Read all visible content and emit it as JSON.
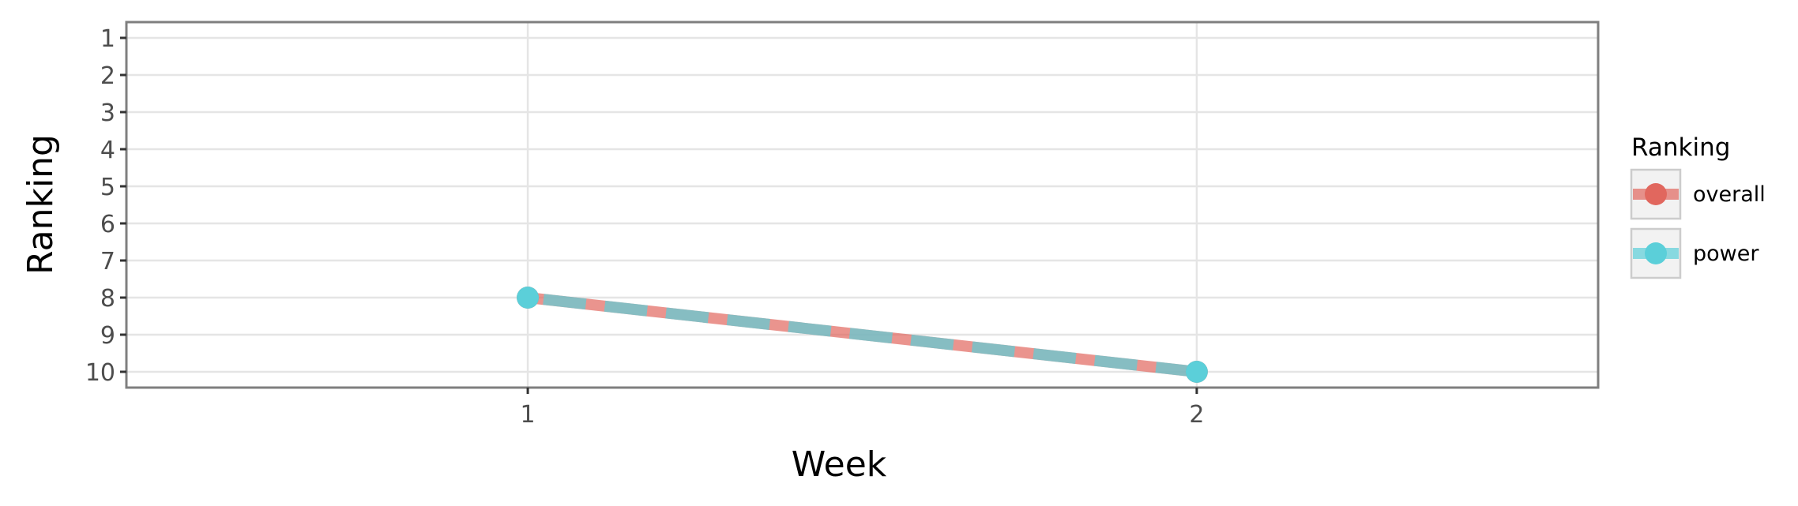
{
  "chart_data": {
    "type": "line",
    "xlabel": "Week",
    "ylabel": "Ranking",
    "x": [
      1,
      2
    ],
    "x_ticks": [
      1,
      2
    ],
    "y_ticks": [
      1,
      2,
      3,
      4,
      5,
      6,
      7,
      8,
      9,
      10
    ],
    "y_reversed": true,
    "xlim": [
      0.4,
      2.6
    ],
    "ylim": [
      1,
      10
    ],
    "grid": true,
    "legend": {
      "title": "Ranking",
      "position": "right"
    },
    "series": [
      {
        "name": "overall",
        "color": "#e1675e",
        "values": [
          8,
          10
        ]
      },
      {
        "name": "power",
        "color": "#5bcfd9",
        "values": [
          8,
          10
        ]
      }
    ]
  }
}
